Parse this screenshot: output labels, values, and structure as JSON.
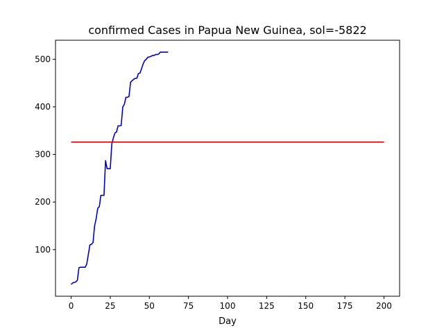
{
  "chart_data": {
    "type": "line",
    "title": "confirmed Cases in Papua New Guinea, sol=-5822",
    "xlabel": "Day",
    "ylabel": "",
    "xlim": [
      -10,
      210
    ],
    "ylim": [
      2,
      540
    ],
    "xticks": [
      0,
      25,
      50,
      75,
      100,
      125,
      150,
      175,
      200
    ],
    "yticks": [
      100,
      200,
      300,
      400,
      500
    ],
    "grid": false,
    "series": [
      {
        "color": "#0000cc",
        "x": [
          0,
          1,
          2,
          3,
          4,
          5,
          6,
          7,
          8,
          9,
          10,
          11,
          12,
          13,
          14,
          15,
          16,
          17,
          18,
          19,
          20,
          21,
          22,
          23,
          24,
          25,
          26,
          27,
          28,
          29,
          30,
          31,
          32,
          33,
          34,
          35,
          36,
          37,
          38,
          39,
          40,
          41,
          42,
          43,
          44,
          45,
          46,
          47,
          48,
          49,
          50,
          51,
          52,
          53,
          54,
          55,
          56,
          57,
          58,
          59,
          60,
          61,
          62
        ],
        "y": [
          27,
          30,
          31,
          32,
          36,
          62,
          63,
          63,
          63,
          63,
          70,
          90,
          110,
          111,
          115,
          150,
          165,
          187,
          190,
          214,
          214,
          214,
          287,
          270,
          270,
          270,
          322,
          335,
          345,
          347,
          360,
          360,
          361,
          400,
          405,
          420,
          420,
          422,
          452,
          455,
          458,
          460,
          460,
          470,
          471,
          480,
          490,
          497,
          500,
          504,
          505,
          506,
          508,
          508,
          510,
          510,
          511,
          515,
          515,
          515,
          515,
          515,
          515
        ]
      },
      {
        "color": "#dd0000",
        "x": [
          0,
          200
        ],
        "y": [
          326,
          326
        ]
      }
    ]
  }
}
